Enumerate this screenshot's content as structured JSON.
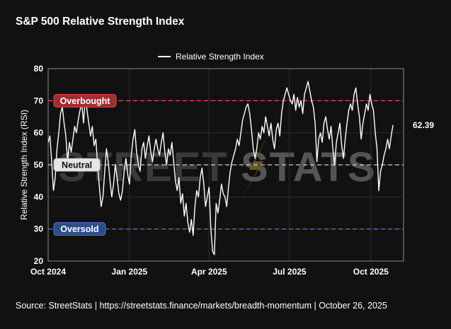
{
  "header": {
    "title": "S&P 500 Relative Strength Index"
  },
  "footer": {
    "source": "Source:  StreetStats  |  https://streetstats.finance/markets/breadth-momentum  |  October 26, 2025"
  },
  "watermark": {
    "part1": "STREET",
    "part2": "STATS"
  },
  "chart_data": {
    "type": "line",
    "title": "S&P 500 Relative Strength Index",
    "ylabel": "Relative Strength Index (RSI)",
    "xlabel": "",
    "ylim": [
      20,
      80
    ],
    "xlim": [
      "2024-10-01",
      "2025-11-07"
    ],
    "y_ticks": [
      20,
      30,
      40,
      50,
      60,
      70,
      80
    ],
    "x_ticks": [
      {
        "date": "2024-10-01",
        "label": "Oct 2024"
      },
      {
        "date": "2025-01-01",
        "label": "Jan 2025"
      },
      {
        "date": "2025-04-01",
        "label": "Apr 2025"
      },
      {
        "date": "2025-07-01",
        "label": "Jul 2025"
      },
      {
        "date": "2025-10-01",
        "label": "Oct 2025"
      }
    ],
    "grid": true,
    "legend": "top-center",
    "series": [
      {
        "name": "Relative Strength Index",
        "color": "#ffffff",
        "points": [
          [
            "2024-10-01",
            57
          ],
          [
            "2024-10-03",
            59
          ],
          [
            "2024-10-05",
            51
          ],
          [
            "2024-10-07",
            42
          ],
          [
            "2024-10-09",
            46
          ],
          [
            "2024-10-11",
            55
          ],
          [
            "2024-10-13",
            60
          ],
          [
            "2024-10-15",
            66
          ],
          [
            "2024-10-17",
            68
          ],
          [
            "2024-10-19",
            63
          ],
          [
            "2024-10-21",
            59
          ],
          [
            "2024-10-23",
            51
          ],
          [
            "2024-10-25",
            57
          ],
          [
            "2024-10-27",
            54
          ],
          [
            "2024-10-29",
            58
          ],
          [
            "2024-10-31",
            62
          ],
          [
            "2024-11-02",
            60
          ],
          [
            "2024-11-04",
            64
          ],
          [
            "2024-11-06",
            67
          ],
          [
            "2024-11-08",
            69
          ],
          [
            "2024-11-10",
            63
          ],
          [
            "2024-11-12",
            71
          ],
          [
            "2024-11-14",
            67
          ],
          [
            "2024-11-16",
            63
          ],
          [
            "2024-11-18",
            59
          ],
          [
            "2024-11-20",
            62
          ],
          [
            "2024-11-22",
            56
          ],
          [
            "2024-11-24",
            58
          ],
          [
            "2024-11-26",
            50
          ],
          [
            "2024-11-28",
            43
          ],
          [
            "2024-11-30",
            37
          ],
          [
            "2024-12-02",
            40
          ],
          [
            "2024-12-04",
            48
          ],
          [
            "2024-12-06",
            55
          ],
          [
            "2024-12-08",
            51
          ],
          [
            "2024-12-10",
            45
          ],
          [
            "2024-12-12",
            40
          ],
          [
            "2024-12-14",
            44
          ],
          [
            "2024-12-16",
            50
          ],
          [
            "2024-12-18",
            46
          ],
          [
            "2024-12-20",
            41
          ],
          [
            "2024-12-22",
            39
          ],
          [
            "2024-12-24",
            42
          ],
          [
            "2024-12-26",
            48
          ],
          [
            "2024-12-28",
            52
          ],
          [
            "2024-12-30",
            47
          ],
          [
            "2025-01-01",
            44
          ],
          [
            "2025-01-03",
            53
          ],
          [
            "2025-01-05",
            58
          ],
          [
            "2025-01-07",
            61
          ],
          [
            "2025-01-09",
            54
          ],
          [
            "2025-01-11",
            50
          ],
          [
            "2025-01-13",
            48
          ],
          [
            "2025-01-15",
            55
          ],
          [
            "2025-01-17",
            57
          ],
          [
            "2025-01-19",
            52
          ],
          [
            "2025-01-21",
            56
          ],
          [
            "2025-01-23",
            59
          ],
          [
            "2025-01-25",
            54
          ],
          [
            "2025-01-27",
            51
          ],
          [
            "2025-01-29",
            55
          ],
          [
            "2025-01-31",
            58
          ],
          [
            "2025-02-02",
            55
          ],
          [
            "2025-02-04",
            53
          ],
          [
            "2025-02-06",
            57
          ],
          [
            "2025-02-08",
            60
          ],
          [
            "2025-02-10",
            54
          ],
          [
            "2025-02-12",
            50
          ],
          [
            "2025-02-14",
            55
          ],
          [
            "2025-02-16",
            53
          ],
          [
            "2025-02-18",
            57
          ],
          [
            "2025-02-20",
            51
          ],
          [
            "2025-02-22",
            45
          ],
          [
            "2025-02-24",
            42
          ],
          [
            "2025-02-26",
            46
          ],
          [
            "2025-02-28",
            38
          ],
          [
            "2025-03-02",
            41
          ],
          [
            "2025-03-04",
            34
          ],
          [
            "2025-03-06",
            38
          ],
          [
            "2025-03-08",
            32
          ],
          [
            "2025-03-10",
            29
          ],
          [
            "2025-03-12",
            33
          ],
          [
            "2025-03-14",
            28
          ],
          [
            "2025-03-16",
            37
          ],
          [
            "2025-03-18",
            42
          ],
          [
            "2025-03-20",
            40
          ],
          [
            "2025-03-22",
            46
          ],
          [
            "2025-03-24",
            49
          ],
          [
            "2025-03-26",
            44
          ],
          [
            "2025-03-28",
            37
          ],
          [
            "2025-03-30",
            40
          ],
          [
            "2025-04-01",
            43
          ],
          [
            "2025-04-03",
            30
          ],
          [
            "2025-04-05",
            23
          ],
          [
            "2025-04-07",
            22
          ],
          [
            "2025-04-09",
            38
          ],
          [
            "2025-04-11",
            35
          ],
          [
            "2025-04-13",
            39
          ],
          [
            "2025-04-15",
            44
          ],
          [
            "2025-04-17",
            41
          ],
          [
            "2025-04-19",
            40
          ],
          [
            "2025-04-21",
            37
          ],
          [
            "2025-04-23",
            43
          ],
          [
            "2025-04-25",
            48
          ],
          [
            "2025-04-27",
            51
          ],
          [
            "2025-04-29",
            53
          ],
          [
            "2025-05-01",
            55
          ],
          [
            "2025-05-03",
            58
          ],
          [
            "2025-05-05",
            56
          ],
          [
            "2025-05-07",
            60
          ],
          [
            "2025-05-09",
            64
          ],
          [
            "2025-05-11",
            66
          ],
          [
            "2025-05-13",
            68
          ],
          [
            "2025-05-15",
            69
          ],
          [
            "2025-05-17",
            66
          ],
          [
            "2025-05-19",
            61
          ],
          [
            "2025-05-21",
            55
          ],
          [
            "2025-05-23",
            52
          ],
          [
            "2025-05-25",
            55
          ],
          [
            "2025-05-27",
            60
          ],
          [
            "2025-05-29",
            58
          ],
          [
            "2025-05-31",
            62
          ],
          [
            "2025-06-02",
            60
          ],
          [
            "2025-06-04",
            65
          ],
          [
            "2025-06-06",
            62
          ],
          [
            "2025-06-08",
            59
          ],
          [
            "2025-06-10",
            63
          ],
          [
            "2025-06-12",
            58
          ],
          [
            "2025-06-14",
            55
          ],
          [
            "2025-06-16",
            61
          ],
          [
            "2025-06-18",
            63
          ],
          [
            "2025-06-20",
            59
          ],
          [
            "2025-06-22",
            66
          ],
          [
            "2025-06-24",
            70
          ],
          [
            "2025-06-26",
            72
          ],
          [
            "2025-06-28",
            74
          ],
          [
            "2025-06-30",
            72
          ],
          [
            "2025-07-02",
            70
          ],
          [
            "2025-07-04",
            69
          ],
          [
            "2025-07-06",
            72
          ],
          [
            "2025-07-08",
            67
          ],
          [
            "2025-07-10",
            71
          ],
          [
            "2025-07-12",
            68
          ],
          [
            "2025-07-14",
            70
          ],
          [
            "2025-07-16",
            66
          ],
          [
            "2025-07-18",
            72
          ],
          [
            "2025-07-20",
            74
          ],
          [
            "2025-07-22",
            76
          ],
          [
            "2025-07-24",
            73
          ],
          [
            "2025-07-26",
            70
          ],
          [
            "2025-07-28",
            68
          ],
          [
            "2025-07-30",
            63
          ],
          [
            "2025-08-01",
            51
          ],
          [
            "2025-08-03",
            58
          ],
          [
            "2025-08-05",
            60
          ],
          [
            "2025-08-07",
            57
          ],
          [
            "2025-08-09",
            63
          ],
          [
            "2025-08-11",
            65
          ],
          [
            "2025-08-13",
            61
          ],
          [
            "2025-08-15",
            58
          ],
          [
            "2025-08-17",
            62
          ],
          [
            "2025-08-19",
            55
          ],
          [
            "2025-08-21",
            50
          ],
          [
            "2025-08-23",
            57
          ],
          [
            "2025-08-25",
            60
          ],
          [
            "2025-08-27",
            63
          ],
          [
            "2025-08-29",
            56
          ],
          [
            "2025-08-31",
            52
          ],
          [
            "2025-09-02",
            58
          ],
          [
            "2025-09-04",
            63
          ],
          [
            "2025-09-06",
            67
          ],
          [
            "2025-09-08",
            69
          ],
          [
            "2025-09-10",
            67
          ],
          [
            "2025-09-12",
            72
          ],
          [
            "2025-09-14",
            74
          ],
          [
            "2025-09-16",
            69
          ],
          [
            "2025-09-18",
            65
          ],
          [
            "2025-09-20",
            58
          ],
          [
            "2025-09-22",
            63
          ],
          [
            "2025-09-24",
            66
          ],
          [
            "2025-09-26",
            69
          ],
          [
            "2025-09-28",
            67
          ],
          [
            "2025-09-30",
            72
          ],
          [
            "2025-10-02",
            69
          ],
          [
            "2025-10-04",
            67
          ],
          [
            "2025-10-06",
            60
          ],
          [
            "2025-10-08",
            55
          ],
          [
            "2025-10-10",
            42
          ],
          [
            "2025-10-12",
            48
          ],
          [
            "2025-10-14",
            50
          ],
          [
            "2025-10-16",
            53
          ],
          [
            "2025-10-18",
            55
          ],
          [
            "2025-10-20",
            58
          ],
          [
            "2025-10-22",
            55
          ],
          [
            "2025-10-24",
            59
          ],
          [
            "2025-10-26",
            62.39
          ]
        ]
      }
    ],
    "reference_lines": [
      {
        "label": "Overbought",
        "value": 70,
        "color": "#e04646",
        "style": "dashed",
        "badge_color": "#9e2f33"
      },
      {
        "label": "Neutral",
        "value": 50,
        "color": "#cfcfcf",
        "style": "dashed",
        "badge_color": "#e6e6e6"
      },
      {
        "label": "Oversold",
        "value": 30,
        "color": "#4f78c4",
        "style": "dashed",
        "badge_color": "#2d4c86"
      }
    ],
    "last_value": {
      "value": 62.39,
      "label": "62.39"
    }
  }
}
